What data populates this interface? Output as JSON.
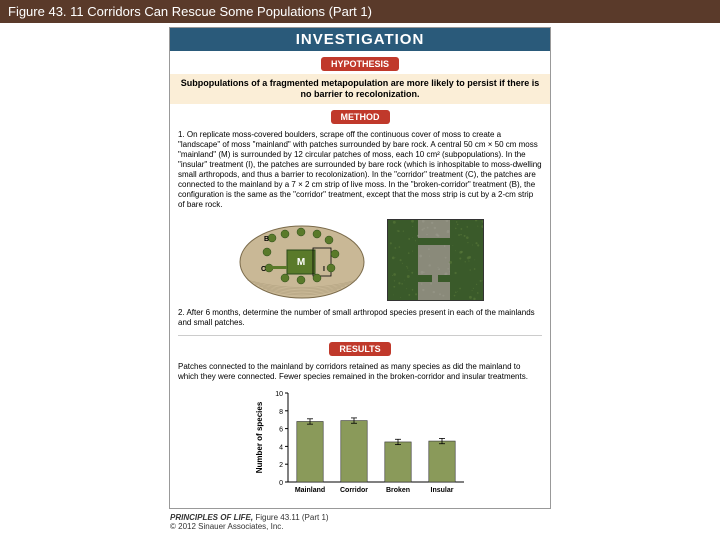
{
  "title_bar": "Figure 43. 11  Corridors Can Rescue Some Populations (Part 1)",
  "investigation": {
    "header": "INVESTIGATION",
    "hypothesis_label": "HYPOTHESIS",
    "hypothesis_text": "Subpopulations of a fragmented metapopulation are more likely to persist if there is no barrier to recolonization.",
    "method_label": "METHOD",
    "method_step1": "1. On replicate moss-covered boulders, scrape off the continuous cover of moss to create a \"landscape\" of moss \"mainland\" with patches surrounded by bare rock. A central 50 cm × 50 cm moss \"mainland\" (M) is surrounded by 12 circular patches of moss, each 10 cm² (subpopulations). In the \"insular\" treatment (I), the patches are surrounded by bare rock (which is inhospitable to moss-dwelling small arthropods, and thus a barrier to recolonization). In the \"corridor\" treatment (C), the patches are connected to the mainland by a 7 × 2 cm strip of live moss. In the \"broken-corridor\" treatment (B), the configuration is the same as the \"corridor\" treatment, except that the moss strip is cut by a 2-cm strip of bare rock.",
    "method_step2": "2. After 6 months, determine the number of small arthropod species present in each of the mainlands and small patches.",
    "results_label": "RESULTS",
    "results_text": "Patches connected to the mainland by corridors retained as many species as did the mainland to which they were connected. Fewer species remained in the broken-corridor and insular treatments."
  },
  "boulder_diagram": {
    "rock_fill": "#c9b896",
    "rock_stroke": "#7a6a4a",
    "moss_fill": "#5a7a2a",
    "mainland_label": "M",
    "patch_labels": [
      "B",
      "C",
      "I"
    ],
    "bare_rock_fill": "#8a8a7a"
  },
  "closeup": {
    "moss1": "#3a5a2a",
    "moss2": "#5a7a3a",
    "rock": "#8a8a7a"
  },
  "chart": {
    "type": "bar",
    "ylabel": "Number of species",
    "ylim": [
      0,
      10
    ],
    "yticks": [
      0,
      2,
      4,
      6,
      8,
      10
    ],
    "categories": [
      "Mainland",
      "Corridor",
      "Broken",
      "Insular"
    ],
    "values": [
      6.8,
      6.9,
      4.5,
      4.6
    ],
    "errors": [
      0.3,
      0.3,
      0.3,
      0.3
    ],
    "bar_color": "#8a9a5a",
    "bar_stroke": "#333333",
    "axis_color": "#000000",
    "font_size_label": 8,
    "font_size_tick": 7,
    "bar_width": 0.6,
    "background": "#ffffff"
  },
  "caption": {
    "line1a": "PRINCIPLES OF LIFE,",
    "line1b": " Figure 43.11 (Part 1)",
    "line2": "© 2012 Sinauer Associates, Inc."
  }
}
